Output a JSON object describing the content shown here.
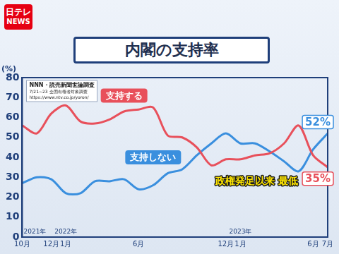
{
  "logo": [
    "日テレ",
    "NEWS"
  ],
  "header": {
    "title": "内閣の支持率"
  },
  "source": {
    "title": "NNN・読売新聞世論調査",
    "lines": [
      "7/21~23 全国有権者対象調査",
      "https://www.ntv.co.jp/yoron/"
    ]
  },
  "chart_data": {
    "type": "line",
    "y_label": "(%)",
    "categories": [
      "10月",
      null,
      "12月",
      "1月",
      null,
      null,
      null,
      null,
      "6月",
      null,
      null,
      null,
      null,
      null,
      "12月",
      "1月",
      null,
      null,
      null,
      null,
      "6月",
      "7月"
    ],
    "year_labels": [
      {
        "index": 0,
        "label": "2021年"
      },
      {
        "index": 3,
        "label": "2022年"
      },
      {
        "index": 15,
        "label": "2023年"
      }
    ],
    "series": [
      {
        "name": "支持する",
        "color": "#e8505b",
        "values": [
          56,
          52,
          62,
          66,
          58,
          57,
          59,
          63,
          64,
          65,
          51,
          50,
          45,
          36,
          39,
          39,
          41,
          42,
          47,
          56,
          41,
          35
        ],
        "value_labels": [
          null,
          null,
          null,
          null,
          null,
          null,
          null,
          null,
          null,
          null,
          null,
          null,
          null,
          null,
          null,
          null,
          null,
          null,
          null,
          null,
          null,
          "35%"
        ]
      },
      {
        "name": "支持しない",
        "color": "#3a8fde",
        "values": [
          27,
          30,
          29,
          22,
          22,
          28,
          28,
          29,
          24,
          26,
          32,
          34,
          41,
          47,
          52,
          47,
          47,
          43,
          38,
          33,
          44,
          52
        ],
        "value_labels": [
          null,
          null,
          null,
          null,
          null,
          null,
          null,
          null,
          null,
          null,
          null,
          null,
          null,
          null,
          null,
          null,
          null,
          null,
          null,
          null,
          null,
          "52%"
        ]
      }
    ],
    "annotations": [
      {
        "text": "政権発足以来 最低"
      }
    ],
    "ylim": [
      0,
      80
    ],
    "yticks": [
      0,
      10,
      20,
      30,
      40,
      50,
      60,
      70,
      80
    ],
    "grid": false
  }
}
